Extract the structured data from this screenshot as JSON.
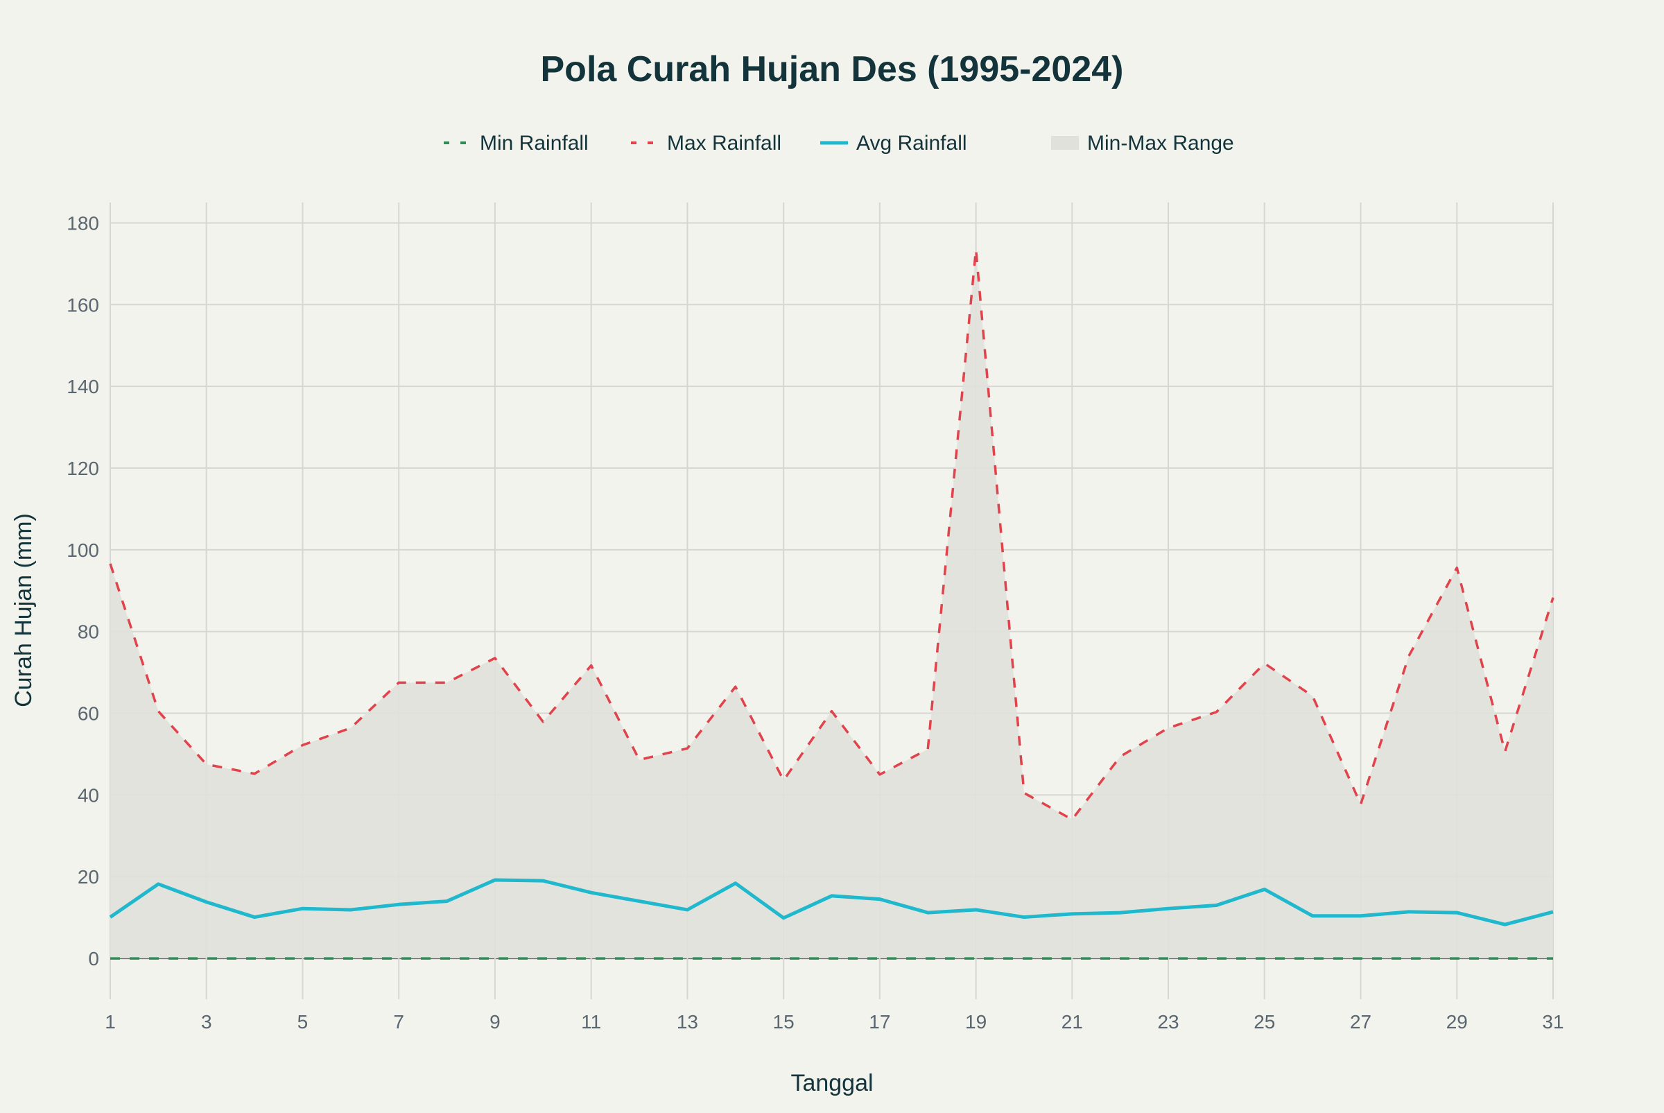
{
  "chart_data": {
    "type": "line",
    "title": "Pola Curah Hujan Des (1995-2024)",
    "xlabel": "Tanggal",
    "ylabel": "Curah Hujan (mm)",
    "xlim": [
      1,
      31
    ],
    "ylim": [
      -10,
      185
    ],
    "x_ticks": [
      1,
      3,
      5,
      7,
      9,
      11,
      13,
      15,
      17,
      19,
      21,
      23,
      25,
      27,
      29,
      31
    ],
    "y_ticks": [
      0,
      20,
      40,
      60,
      80,
      100,
      120,
      140,
      160,
      180
    ],
    "grid": true,
    "legend_position": "top-center",
    "x": [
      1,
      2,
      3,
      4,
      5,
      6,
      7,
      8,
      9,
      10,
      11,
      12,
      13,
      14,
      15,
      16,
      17,
      18,
      19,
      20,
      21,
      22,
      23,
      24,
      25,
      26,
      27,
      28,
      29,
      30,
      31
    ],
    "series": [
      {
        "name": "Min Rainfall",
        "style": "dashed",
        "color": "#2e8b57",
        "values": [
          0,
          0,
          0,
          0,
          0,
          0,
          0,
          0,
          0,
          0,
          0,
          0,
          0,
          0,
          0,
          0,
          0,
          0,
          0,
          0,
          0,
          0,
          0,
          0,
          0,
          0,
          0,
          0,
          0,
          0,
          0
        ]
      },
      {
        "name": "Max Rainfall",
        "style": "dashed",
        "color": "#e0434b",
        "values": [
          96.6,
          60.5,
          47.5,
          45.2,
          52.2,
          56.4,
          67.5,
          67.5,
          73.5,
          57.9,
          71.7,
          48.6,
          51.4,
          66.5,
          43.6,
          60.5,
          45.0,
          51.2,
          173.5,
          40.5,
          34.0,
          49.4,
          56.4,
          60.3,
          72.2,
          64.2,
          37.7,
          74.0,
          95.6,
          50.6,
          88.3
        ]
      },
      {
        "name": "Avg Rainfall",
        "style": "solid",
        "color": "#1fb8cd",
        "values": [
          10.1,
          18.2,
          13.8,
          10.1,
          12.2,
          11.9,
          13.2,
          14.0,
          19.2,
          19.0,
          16.1,
          14.0,
          11.9,
          18.4,
          9.9,
          15.3,
          14.5,
          11.2,
          11.9,
          10.1,
          10.9,
          11.2,
          12.2,
          13.0,
          16.9,
          10.4,
          10.4,
          11.4,
          11.2,
          8.3,
          11.4
        ]
      }
    ],
    "range_band": {
      "name": "Min-Max Range",
      "color": "#e1e1dc"
    }
  }
}
